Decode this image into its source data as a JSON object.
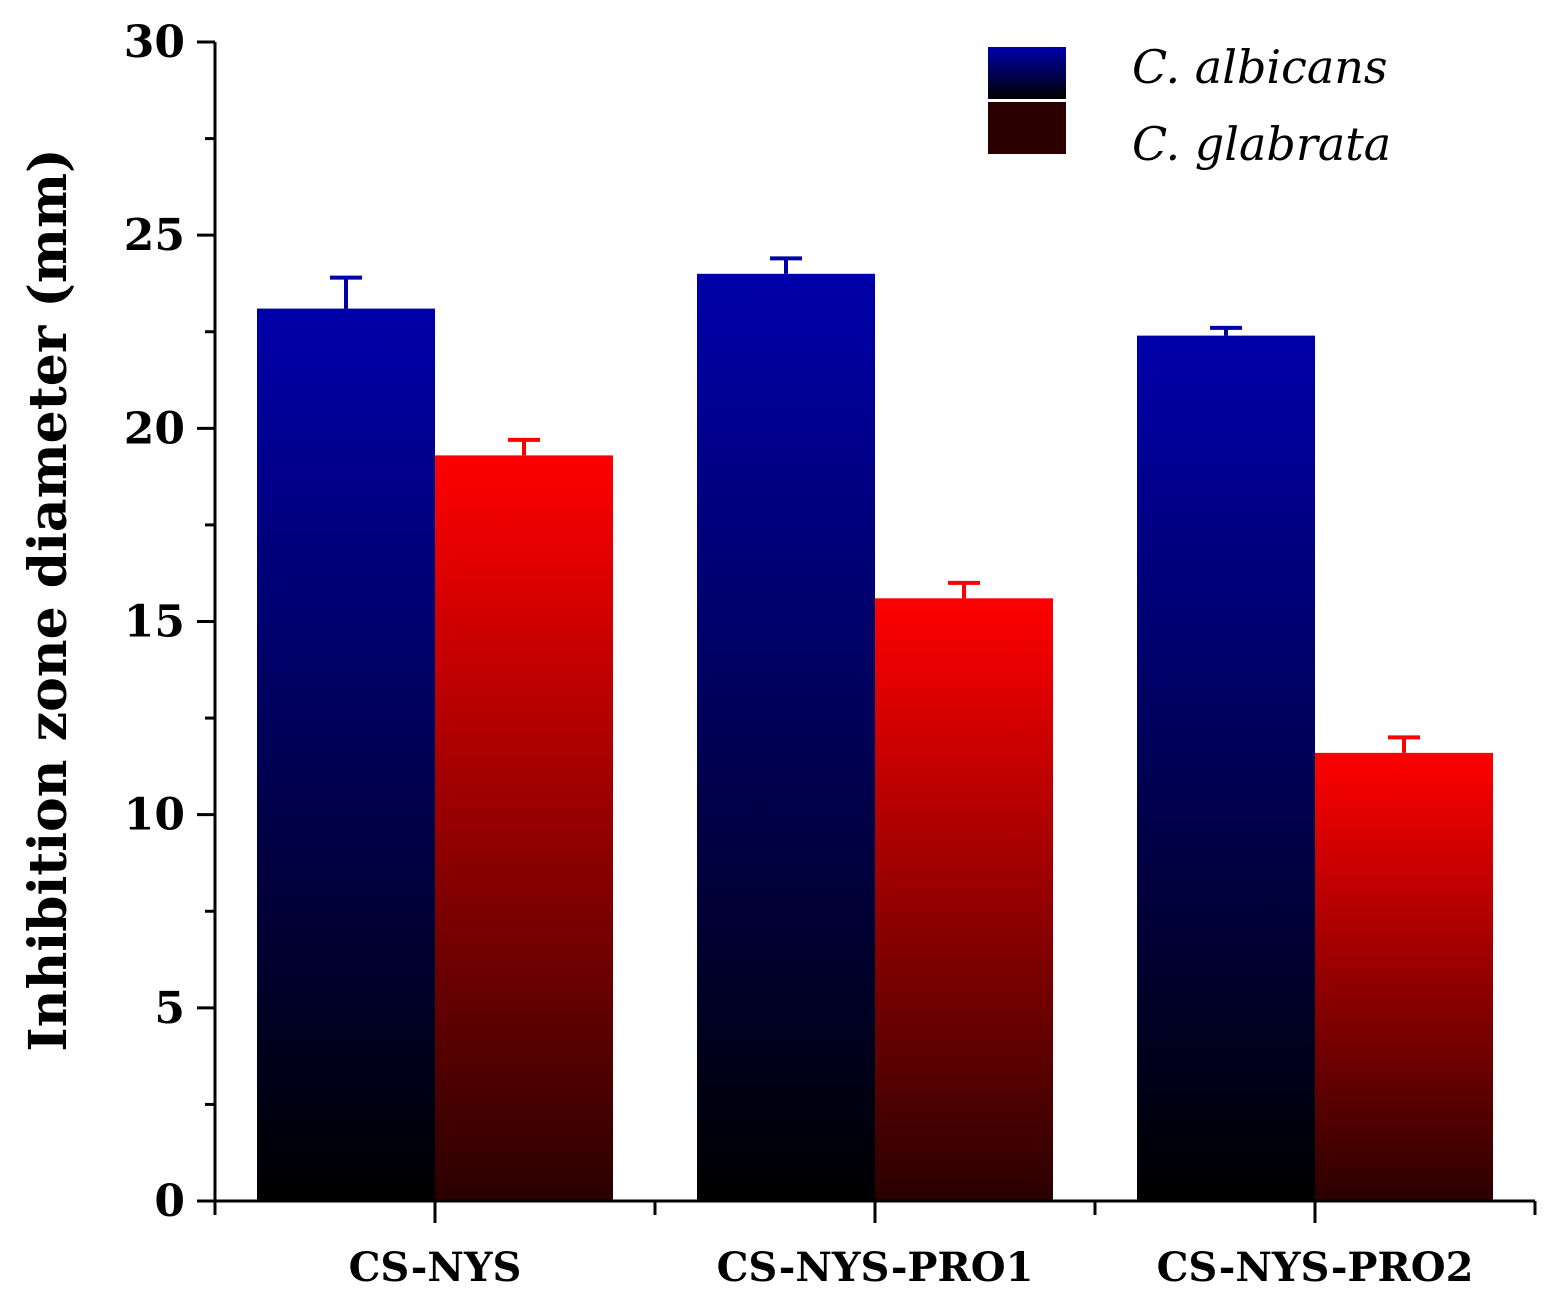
{
  "chart_data": {
    "type": "bar",
    "title": "",
    "xlabel": "",
    "ylabel": "Inhibition zone diameter (mm)",
    "ylim": [
      0,
      30
    ],
    "yticks": [
      "0",
      "5",
      "10",
      "15",
      "20",
      "25",
      "30"
    ],
    "y_minor_step": 2.5,
    "categories": [
      "CS-NYS",
      "CS-NYS-PRO1",
      "CS-NYS-PRO2"
    ],
    "series": [
      {
        "name": "C. albicans",
        "color_top": "#0000aa",
        "color_bottom": "#000000",
        "values": [
          23.1,
          24.0,
          22.4
        ],
        "errors": [
          0.8,
          0.4,
          0.2
        ]
      },
      {
        "name": "C. glabrata",
        "color_top": "#ff0000",
        "color_bottom": "#2a0000",
        "values": [
          19.3,
          15.6,
          11.6
        ],
        "errors": [
          0.4,
          0.4,
          0.4
        ]
      }
    ],
    "legend_position": "top-right",
    "grid": false
  }
}
